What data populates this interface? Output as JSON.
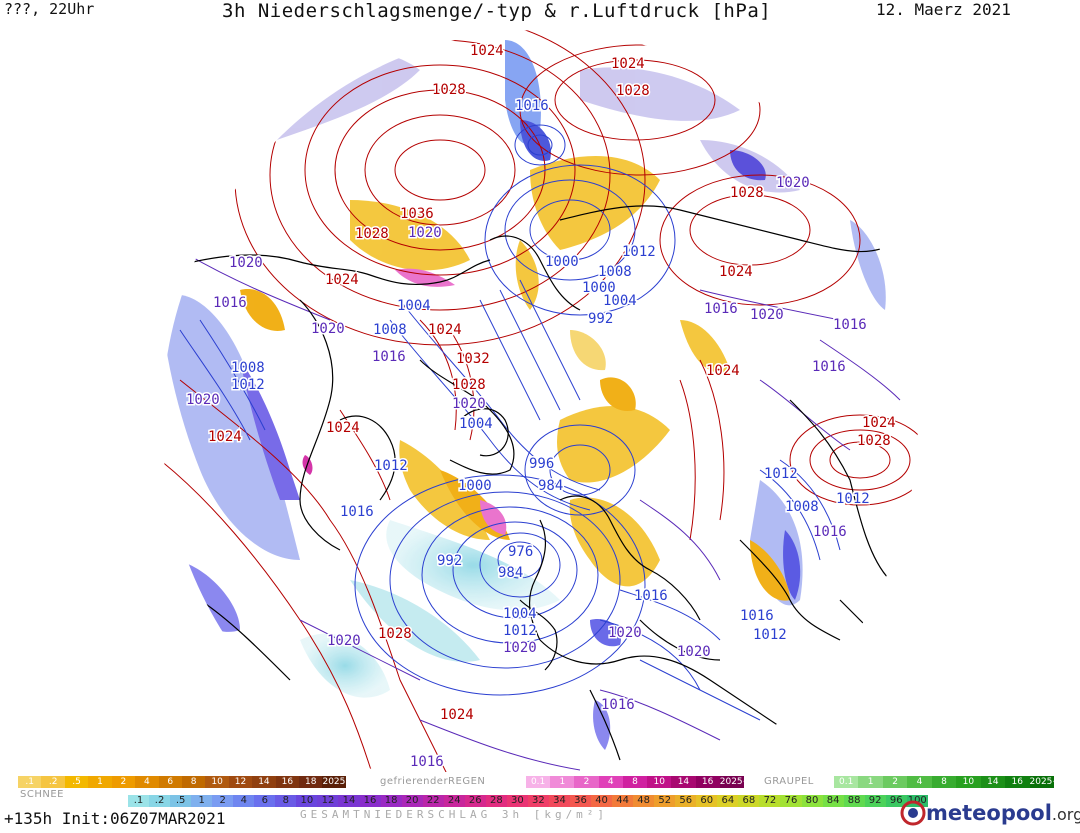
{
  "header": {
    "left": "???, 22Uhr",
    "title": "3h Niederschlagsmenge/-typ & r.Luftdruck [hPa]",
    "date": "12. Maerz 2021"
  },
  "map": {
    "high_color": "#b40000",
    "low_color": "#2b3fd0",
    "mid_color": "#5a2ab8",
    "isobar_labels": [
      {
        "text": "1024",
        "kind": "high"
      },
      {
        "text": "1024",
        "kind": "high"
      },
      {
        "text": "1028",
        "kind": "high"
      },
      {
        "text": "1016",
        "kind": "low"
      },
      {
        "text": "1028",
        "kind": "high"
      },
      {
        "text": "1036",
        "kind": "high"
      },
      {
        "text": "1028",
        "kind": "high"
      },
      {
        "text": "1020",
        "kind": "mid"
      },
      {
        "text": "1024",
        "kind": "high"
      },
      {
        "text": "1028",
        "kind": "high"
      },
      {
        "text": "1020",
        "kind": "mid"
      },
      {
        "text": "1024",
        "kind": "high"
      },
      {
        "text": "1020",
        "kind": "mid"
      },
      {
        "text": "1016",
        "kind": "mid"
      },
      {
        "text": "1004",
        "kind": "low"
      },
      {
        "text": "1000",
        "kind": "low"
      },
      {
        "text": "1008",
        "kind": "low"
      },
      {
        "text": "1012",
        "kind": "low"
      },
      {
        "text": "1000",
        "kind": "low"
      },
      {
        "text": "1004",
        "kind": "low"
      },
      {
        "text": "1020",
        "kind": "mid"
      },
      {
        "text": "1008",
        "kind": "low"
      },
      {
        "text": "1024",
        "kind": "high"
      },
      {
        "text": "992",
        "kind": "low"
      },
      {
        "text": "1016",
        "kind": "mid"
      },
      {
        "text": "1020",
        "kind": "mid"
      },
      {
        "text": "1016",
        "kind": "mid"
      },
      {
        "text": "1008",
        "kind": "low"
      },
      {
        "text": "1016",
        "kind": "mid"
      },
      {
        "text": "1012",
        "kind": "low"
      },
      {
        "text": "1032",
        "kind": "high"
      },
      {
        "text": "1028",
        "kind": "high"
      },
      {
        "text": "1020",
        "kind": "mid"
      },
      {
        "text": "1020",
        "kind": "mid"
      },
      {
        "text": "1024",
        "kind": "high"
      },
      {
        "text": "1016",
        "kind": "mid"
      },
      {
        "text": "1024",
        "kind": "high"
      },
      {
        "text": "1024",
        "kind": "high"
      },
      {
        "text": "1004",
        "kind": "low"
      },
      {
        "text": "1024",
        "kind": "high"
      },
      {
        "text": "1028",
        "kind": "high"
      },
      {
        "text": "1012",
        "kind": "low"
      },
      {
        "text": "996",
        "kind": "low"
      },
      {
        "text": "1000",
        "kind": "low"
      },
      {
        "text": "984",
        "kind": "low"
      },
      {
        "text": "1012",
        "kind": "low"
      },
      {
        "text": "1008",
        "kind": "low"
      },
      {
        "text": "1012",
        "kind": "low"
      },
      {
        "text": "1016",
        "kind": "low"
      },
      {
        "text": "1016",
        "kind": "mid"
      },
      {
        "text": "992",
        "kind": "low"
      },
      {
        "text": "976",
        "kind": "low"
      },
      {
        "text": "984",
        "kind": "low"
      },
      {
        "text": "1004",
        "kind": "low"
      },
      {
        "text": "1012",
        "kind": "low"
      },
      {
        "text": "1020",
        "kind": "mid"
      },
      {
        "text": "1016",
        "kind": "low"
      },
      {
        "text": "1016",
        "kind": "low"
      },
      {
        "text": "1012",
        "kind": "low"
      },
      {
        "text": "1020",
        "kind": "mid"
      },
      {
        "text": "1028",
        "kind": "high"
      },
      {
        "text": "1020",
        "kind": "mid"
      },
      {
        "text": "1020",
        "kind": "mid"
      },
      {
        "text": "1024",
        "kind": "high"
      },
      {
        "text": "1016",
        "kind": "mid"
      },
      {
        "text": "1016",
        "kind": "mid"
      }
    ]
  },
  "legend": {
    "snow": {
      "title": "SCHNEE",
      "bins": [
        ".1",
        ".2",
        ".5",
        "1",
        "2",
        "4",
        "6",
        "8",
        "10",
        "12",
        "14",
        "16",
        "18",
        "2025+"
      ],
      "colors": [
        "#f6d365",
        "#f5c542",
        "#f3b800",
        "#f0a800",
        "#ee9b00",
        "#e08a00",
        "#d07a00",
        "#c06a00",
        "#b05a10",
        "#a04a10",
        "#904010",
        "#803510",
        "#702a10",
        "#5a2008"
      ]
    },
    "freezing_rain": {
      "title": "gefrierenderREGEN",
      "bins": [
        "0.1",
        "1",
        "2",
        "4",
        "8",
        "10",
        "14",
        "16",
        "2025+"
      ],
      "colors": [
        "#f7b2e8",
        "#f08ad8",
        "#e866c8",
        "#e040b8",
        "#d020a0",
        "#c01088",
        "#a80870",
        "#900060",
        "#780050"
      ]
    },
    "graupel": {
      "title": "GRAUPEL",
      "bins": [
        "0.1",
        "1",
        "2",
        "4",
        "8",
        "10",
        "14",
        "16",
        "2025+"
      ],
      "colors": [
        "#a8e6a0",
        "#8ad880",
        "#6cca60",
        "#50bc44",
        "#38ac30",
        "#28a020",
        "#1c9018",
        "#108010",
        "#087008"
      ]
    },
    "total": {
      "title": "GESAMTNIEDERSCHLAG 3h [kg/m²]",
      "bins": [
        ".1",
        ".2",
        ".5",
        "1",
        "2",
        "4",
        "6",
        "8",
        "10",
        "12",
        "14",
        "16",
        "18",
        "20",
        "22",
        "24",
        "26",
        "28",
        "30",
        "32",
        "34",
        "36",
        "40",
        "44",
        "48",
        "52",
        "56",
        "60",
        "64",
        "68",
        "72",
        "76",
        "80",
        "84",
        "88",
        "92",
        "96",
        "100"
      ],
      "colors": [
        "#9be3e8",
        "#88d6e6",
        "#7cc3e6",
        "#7fb0ee",
        "#7a9cf2",
        "#6f86f0",
        "#6a70ee",
        "#6a5be6",
        "#6a46de",
        "#7040d8",
        "#7a36d2",
        "#8a2ecc",
        "#9a2ac4",
        "#aa28b8",
        "#ba26aa",
        "#c8269c",
        "#d6288e",
        "#e22c80",
        "#ea3474",
        "#f03e68",
        "#f24a5c",
        "#f45850",
        "#f46844",
        "#f27a3a",
        "#f08c32",
        "#ee9e2c",
        "#eab028",
        "#e6c226",
        "#dcd026",
        "#ccd828",
        "#b8de2c",
        "#a2e234",
        "#8ce23c",
        "#76e046",
        "#60da50",
        "#4cd25a",
        "#3ac862",
        "#2cbc68"
      ]
    }
  },
  "footer": {
    "init": "+135h  Init:06Z07MAR2021",
    "logo": "meteopool",
    "logo_suffix": ".org"
  }
}
